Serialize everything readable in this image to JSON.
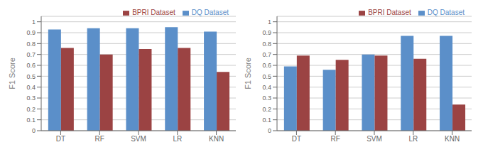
{
  "chart_data": [
    {
      "type": "bar",
      "categories": [
        "DT",
        "RF",
        "SVM",
        "LR",
        "KNN"
      ],
      "series": [
        {
          "name": "DQ Dataset",
          "color": "#5b8fc9",
          "values": [
            0.93,
            0.94,
            0.94,
            0.95,
            0.91
          ]
        },
        {
          "name": "BPRI Dataset",
          "color": "#9b4343",
          "values": [
            0.76,
            0.7,
            0.75,
            0.76,
            0.54
          ]
        }
      ],
      "y_label": "F1 Score",
      "ylim": [
        0,
        1.05
      ],
      "yticks": [
        0,
        0.1,
        0.2,
        0.3,
        0.4,
        0.5,
        0.6,
        0.7,
        0.8,
        0.9,
        1
      ],
      "grid": true,
      "legend": "upper right"
    },
    {
      "type": "bar",
      "categories": [
        "DT",
        "RF",
        "SVM",
        "LR",
        "KNN"
      ],
      "series": [
        {
          "name": "DQ Dataset",
          "color": "#5b8fc9",
          "values": [
            0.59,
            0.56,
            0.7,
            0.87,
            0.87
          ]
        },
        {
          "name": "BPRI Dataset",
          "color": "#9b4343",
          "values": [
            0.69,
            0.65,
            0.69,
            0.66,
            0.24
          ]
        }
      ],
      "y_label": "F1 Score",
      "ylim": [
        0,
        1.05
      ],
      "yticks": [
        0,
        0.1,
        0.2,
        0.3,
        0.4,
        0.5,
        0.6,
        0.7,
        0.8,
        0.9,
        1
      ],
      "grid": true,
      "legend": "upper right"
    }
  ]
}
